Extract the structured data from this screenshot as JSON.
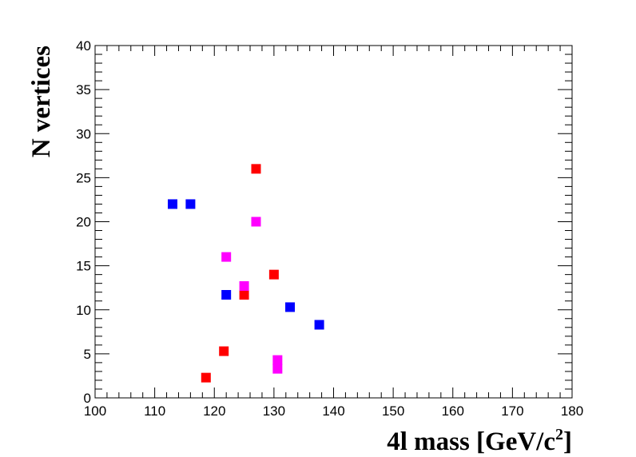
{
  "chart_data": {
    "type": "scatter",
    "xlabel_main": "4l mass [GeV/c",
    "xlabel_sup": "2",
    "xlabel_end": "]",
    "ylabel": "N vertices",
    "xlim": [
      100,
      180
    ],
    "ylim": [
      0,
      40
    ],
    "x_ticks": [
      100,
      110,
      120,
      130,
      140,
      150,
      160,
      170,
      180
    ],
    "y_ticks": [
      0,
      5,
      10,
      15,
      20,
      25,
      30,
      35,
      40
    ],
    "grid": false,
    "marker": "square",
    "series": [
      {
        "color": "#ff0000",
        "points": [
          {
            "x": 127.0,
            "y": 26.0
          },
          {
            "x": 130.0,
            "y": 14.0
          },
          {
            "x": 125.0,
            "y": 11.7
          },
          {
            "x": 121.6,
            "y": 5.3
          },
          {
            "x": 118.6,
            "y": 2.3
          }
        ]
      },
      {
        "color": "#0000ff",
        "points": [
          {
            "x": 113.0,
            "y": 22.0
          },
          {
            "x": 116.0,
            "y": 22.0
          },
          {
            "x": 122.0,
            "y": 11.7
          },
          {
            "x": 132.7,
            "y": 10.3
          },
          {
            "x": 137.6,
            "y": 8.3
          }
        ]
      },
      {
        "color": "#ff00ff",
        "points": [
          {
            "x": 127.0,
            "y": 20.0
          },
          {
            "x": 122.0,
            "y": 16.0
          },
          {
            "x": 125.0,
            "y": 12.7
          },
          {
            "x": 130.6,
            "y": 4.3
          },
          {
            "x": 130.6,
            "y": 3.3
          }
        ]
      }
    ]
  }
}
